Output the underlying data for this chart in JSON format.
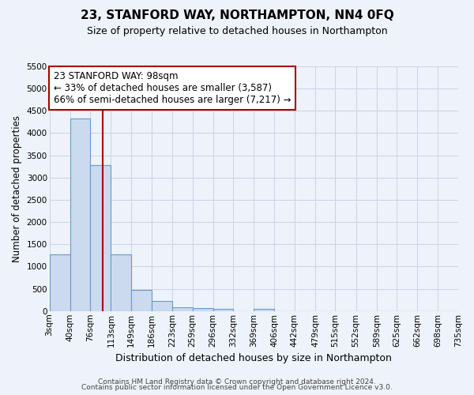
{
  "title": "23, STANFORD WAY, NORTHAMPTON, NN4 0FQ",
  "subtitle": "Size of property relative to detached houses in Northampton",
  "xlabel": "Distribution of detached houses by size in Northampton",
  "ylabel": "Number of detached properties",
  "bin_edges": [
    3,
    40,
    76,
    113,
    149,
    186,
    223,
    259,
    296,
    332,
    369,
    406,
    442,
    479,
    515,
    552,
    589,
    625,
    662,
    698,
    735
  ],
  "bar_heights": [
    1270,
    4330,
    3280,
    1270,
    480,
    230,
    90,
    60,
    50,
    0,
    50,
    0,
    0,
    0,
    0,
    0,
    0,
    0,
    0,
    0
  ],
  "bar_color": "#ccdaf0",
  "bar_edge_color": "#6699cc",
  "property_size": 98,
  "vline_color": "#aa0000",
  "vline_x": 98,
  "annotation_line1": "23 STANFORD WAY: 98sqm",
  "annotation_line2": "← 33% of detached houses are smaller (3,587)",
  "annotation_line3": "66% of semi-detached houses are larger (7,217) →",
  "ylim": [
    0,
    5500
  ],
  "yticks": [
    0,
    500,
    1000,
    1500,
    2000,
    2500,
    3000,
    3500,
    4000,
    4500,
    5000,
    5500
  ],
  "footer_line1": "Contains HM Land Registry data © Crown copyright and database right 2024.",
  "footer_line2": "Contains public sector information licensed under the Open Government Licence v3.0.",
  "bg_color": "#eef2fa",
  "grid_color": "#c8d4e8",
  "title_fontsize": 11,
  "subtitle_fontsize": 9,
  "xlabel_fontsize": 9,
  "ylabel_fontsize": 8.5,
  "tick_fontsize": 7.5,
  "annotation_fontsize": 8.5,
  "footer_fontsize": 6.5
}
